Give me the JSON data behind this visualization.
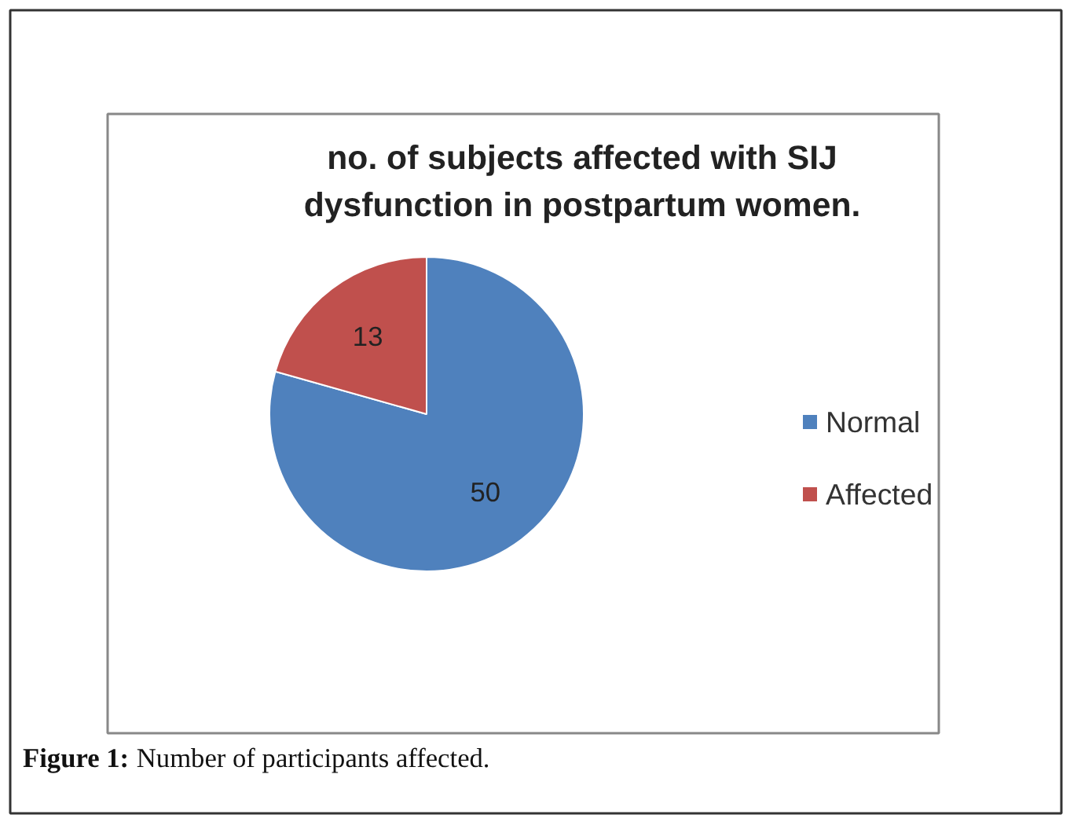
{
  "chart_data": {
    "type": "pie",
    "title": "no. of subjects affected with SIJ dysfunction in postpartum women.",
    "categories": [
      "Normal",
      "Affected"
    ],
    "values": [
      50,
      13
    ],
    "colors": [
      "#4f81bd",
      "#c0504d"
    ],
    "data_labels": true,
    "legend": "right",
    "annotations": [
      "Figure 1: Number of participants affected."
    ]
  }
}
